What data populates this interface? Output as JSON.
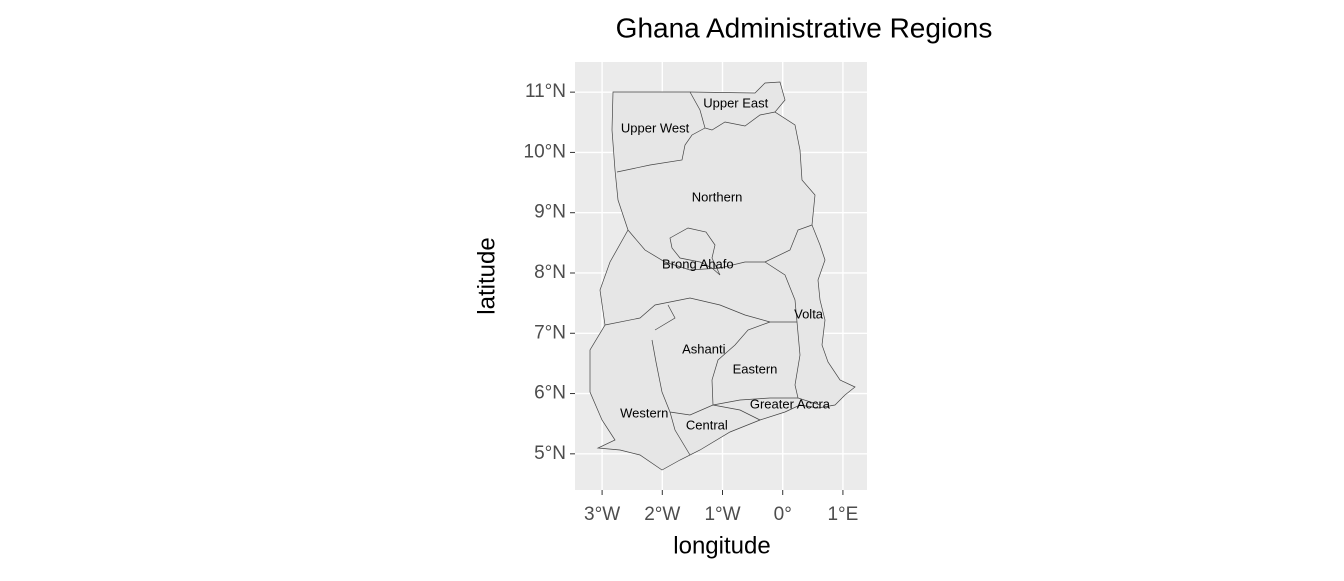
{
  "chart_data": {
    "type": "map",
    "title": "Ghana Administrative Regions",
    "x_label": "longitude",
    "y_label": "latitude",
    "xlim": [
      -3.45,
      1.4
    ],
    "ylim": [
      4.4,
      11.5
    ],
    "xticks": [
      {
        "value": -3,
        "label": "3°W"
      },
      {
        "value": -2,
        "label": "2°W"
      },
      {
        "value": -1,
        "label": "1°W"
      },
      {
        "value": 0,
        "label": "0°"
      },
      {
        "value": 1,
        "label": "1°E"
      }
    ],
    "yticks": [
      {
        "value": 5,
        "label": "5°N"
      },
      {
        "value": 6,
        "label": "6°N"
      },
      {
        "value": 7,
        "label": "7°N"
      },
      {
        "value": 8,
        "label": "8°N"
      },
      {
        "value": 9,
        "label": "9°N"
      },
      {
        "value": 10,
        "label": "10°N"
      },
      {
        "value": 11,
        "label": "11°N"
      }
    ],
    "grid": true,
    "regions": [
      {
        "name": "Upper East",
        "lon": -0.78,
        "lat": 10.8
      },
      {
        "name": "Upper West",
        "lon": -2.12,
        "lat": 10.39
      },
      {
        "name": "Northern",
        "lon": -1.09,
        "lat": 9.24
      },
      {
        "name": "Brong Ahafo",
        "lon": -1.41,
        "lat": 8.13
      },
      {
        "name": "Volta",
        "lon": 0.43,
        "lat": 7.3
      },
      {
        "name": "Ashanti",
        "lon": -1.31,
        "lat": 6.72
      },
      {
        "name": "Eastern",
        "lon": -0.46,
        "lat": 6.39
      },
      {
        "name": "Greater Accra",
        "lon": 0.12,
        "lat": 5.81
      },
      {
        "name": "Western",
        "lon": -2.3,
        "lat": 5.66
      },
      {
        "name": "Central",
        "lon": -1.26,
        "lat": 5.46
      }
    ]
  }
}
